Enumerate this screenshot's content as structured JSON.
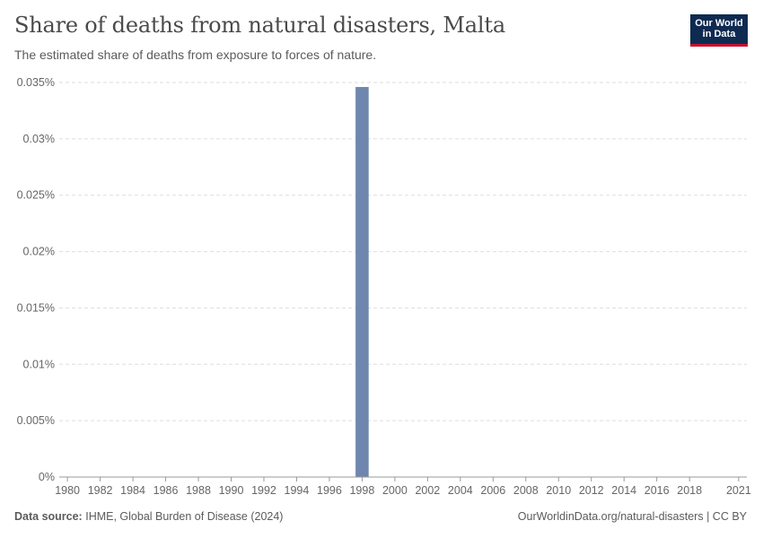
{
  "header": {
    "title": "Share of deaths from natural disasters, Malta",
    "subtitle": "The estimated share of deaths from exposure to forces of nature."
  },
  "logo": {
    "line1": "Our World",
    "line2": "in Data"
  },
  "footer": {
    "source_label": "Data source:",
    "source_text": "IHME, Global Burden of Disease (2024)",
    "attribution": "OurWorldinData.org/natural-disasters | CC BY"
  },
  "colors": {
    "bar": "#6f87ae",
    "grid": "#dddddd",
    "axis": "#999999",
    "text": "#666666"
  },
  "chart_data": {
    "type": "bar",
    "title": "Share of deaths from natural disasters, Malta",
    "subtitle": "The estimated share of deaths from exposure to forces of nature.",
    "x_range": [
      1980,
      2021
    ],
    "x_ticks": [
      "1980",
      "1982",
      "1984",
      "1986",
      "1988",
      "1990",
      "1992",
      "1994",
      "1996",
      "1998",
      "2000",
      "2002",
      "2004",
      "2006",
      "2008",
      "2010",
      "2012",
      "2014",
      "2016",
      "2018",
      "2021"
    ],
    "y_ticks": [
      "0%",
      "0.005%",
      "0.01%",
      "0.015%",
      "0.02%",
      "0.025%",
      "0.03%",
      "0.035%"
    ],
    "ylim": [
      0,
      0.035
    ],
    "grid": true,
    "series": [
      {
        "name": "Malta",
        "x": [
          1998
        ],
        "values": [
          0.0346
        ]
      }
    ]
  }
}
